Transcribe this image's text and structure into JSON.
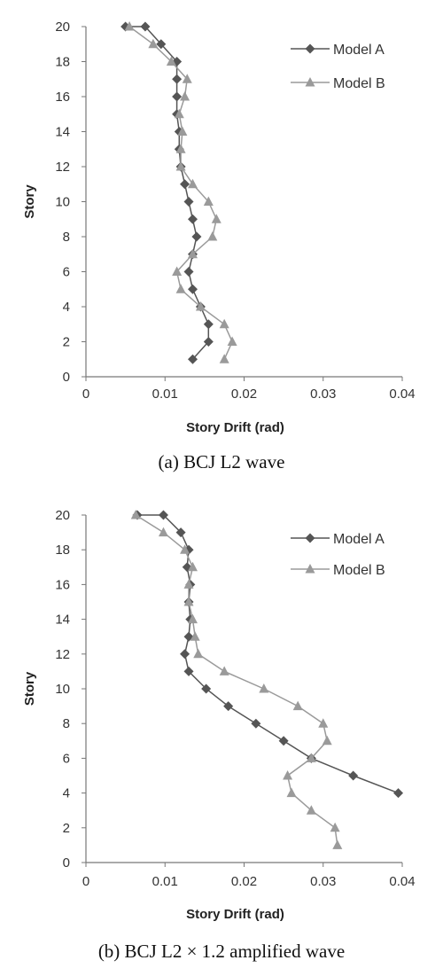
{
  "chart_data": [
    {
      "type": "line",
      "caption": "(a)  BCJ  L2  wave",
      "xlabel": "Story Drift (rad)",
      "ylabel": "Story",
      "xlim": [
        0,
        0.04
      ],
      "ylim": [
        0,
        20
      ],
      "x_ticks": [
        "0",
        "0.01",
        "0.02",
        "0.03",
        "0.04"
      ],
      "y_ticks": [
        "0",
        "2",
        "4",
        "6",
        "8",
        "10",
        "12",
        "14",
        "16",
        "18",
        "20"
      ],
      "grid": false,
      "legend": "top-right",
      "series": [
        {
          "name": "Model A",
          "marker": "diamond",
          "color": "#555555",
          "x": [
            0.0135,
            0.0155,
            0.0155,
            0.0145,
            0.0135,
            0.013,
            0.0135,
            0.014,
            0.0135,
            0.013,
            0.0125,
            0.012,
            0.0118,
            0.0118,
            0.0115,
            0.0115,
            0.0115,
            0.0115,
            0.0095,
            0.0075,
            0.005
          ],
          "y": [
            1,
            2,
            3,
            4,
            5,
            6,
            7,
            8,
            9,
            10,
            11,
            12,
            13,
            14,
            15,
            16,
            17,
            18,
            19,
            20,
            20
          ]
        },
        {
          "name": "Model B",
          "marker": "triangle",
          "color": "#9a9a9a",
          "x": [
            0.0175,
            0.0185,
            0.0175,
            0.0145,
            0.012,
            0.0115,
            0.0135,
            0.016,
            0.0165,
            0.0155,
            0.0135,
            0.012,
            0.012,
            0.0122,
            0.0118,
            0.0125,
            0.0128,
            0.0108,
            0.0085,
            0.0055
          ],
          "y": [
            1,
            2,
            3,
            4,
            5,
            6,
            7,
            8,
            9,
            10,
            11,
            12,
            13,
            14,
            15,
            16,
            17,
            18,
            19,
            20
          ]
        }
      ]
    },
    {
      "type": "line",
      "caption": "(b)  BCJ  L2  ×  1.2  amplified  wave",
      "xlabel": "Story Drift (rad)",
      "ylabel": "Story",
      "xlim": [
        0,
        0.04
      ],
      "ylim": [
        0,
        20
      ],
      "x_ticks": [
        "0",
        "0.01",
        "0.02",
        "0.03",
        "0.04"
      ],
      "y_ticks": [
        "0",
        "2",
        "4",
        "6",
        "8",
        "10",
        "12",
        "14",
        "16",
        "18",
        "20"
      ],
      "grid": false,
      "legend": "top-right",
      "series": [
        {
          "name": "Model A",
          "marker": "diamond",
          "color": "#555555",
          "x": [
            0.0395,
            0.0338,
            0.0285,
            0.025,
            0.0215,
            0.018,
            0.0152,
            0.013,
            0.0125,
            0.013,
            0.0132,
            0.013,
            0.0132,
            0.0128,
            0.013,
            0.012,
            0.0098,
            0.0065
          ],
          "y": [
            4,
            5,
            6,
            7,
            8,
            9,
            10,
            11,
            12,
            13,
            14,
            15,
            16,
            17,
            18,
            19,
            20,
            20
          ]
        },
        {
          "name": "Model B",
          "marker": "triangle",
          "color": "#9a9a9a",
          "x": [
            0.0318,
            0.0315,
            0.0285,
            0.026,
            0.0255,
            0.0285,
            0.0305,
            0.03,
            0.0268,
            0.0225,
            0.0175,
            0.0142,
            0.0138,
            0.0135,
            0.013,
            0.013,
            0.0135,
            0.0125,
            0.0098,
            0.0063
          ],
          "y": [
            1,
            2,
            3,
            4,
            5,
            6,
            7,
            8,
            9,
            10,
            11,
            12,
            13,
            14,
            15,
            16,
            17,
            18,
            19,
            20
          ]
        }
      ]
    }
  ]
}
